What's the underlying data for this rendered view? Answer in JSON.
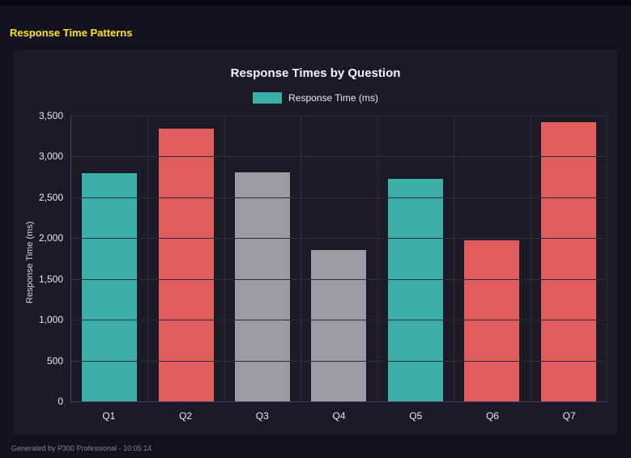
{
  "window": {
    "heading": "Response Time Patterns",
    "heading_color": "#ffe500",
    "footer": "Generated by P300 Professional - 10:05:14"
  },
  "chart_data": {
    "type": "bar",
    "title": "Response Times by Question",
    "xlabel": "",
    "ylabel": "Response Time (ms)",
    "categories": [
      "Q1",
      "Q2",
      "Q3",
      "Q4",
      "Q5",
      "Q6",
      "Q7"
    ],
    "values": [
      2800,
      3340,
      2810,
      1850,
      2730,
      1970,
      3420
    ],
    "bar_colors": [
      "#3bafa5",
      "#e05d5d",
      "#9b9ba0",
      "#9b9ba0",
      "#3bafa5",
      "#e05d5d",
      "#e05d5d"
    ],
    "ylim": [
      0,
      3500
    ],
    "ytick_values": [
      0,
      500,
      1000,
      1500,
      2000,
      2500,
      3000,
      3500
    ],
    "ytick_labels": [
      "0",
      "500",
      "1,000",
      "1,500",
      "2,000",
      "2,500",
      "3,000",
      "3,500"
    ],
    "grid": true,
    "legend_position": "top",
    "legend": {
      "label": "Response Time (ms)",
      "swatch_color": "#3bafa5"
    },
    "colors": {
      "teal": "#3bafa5",
      "red": "#e05d5d",
      "gray": "#9b9ba0",
      "panel_background": "#1b1b27",
      "page_background": "#12121c"
    }
  }
}
